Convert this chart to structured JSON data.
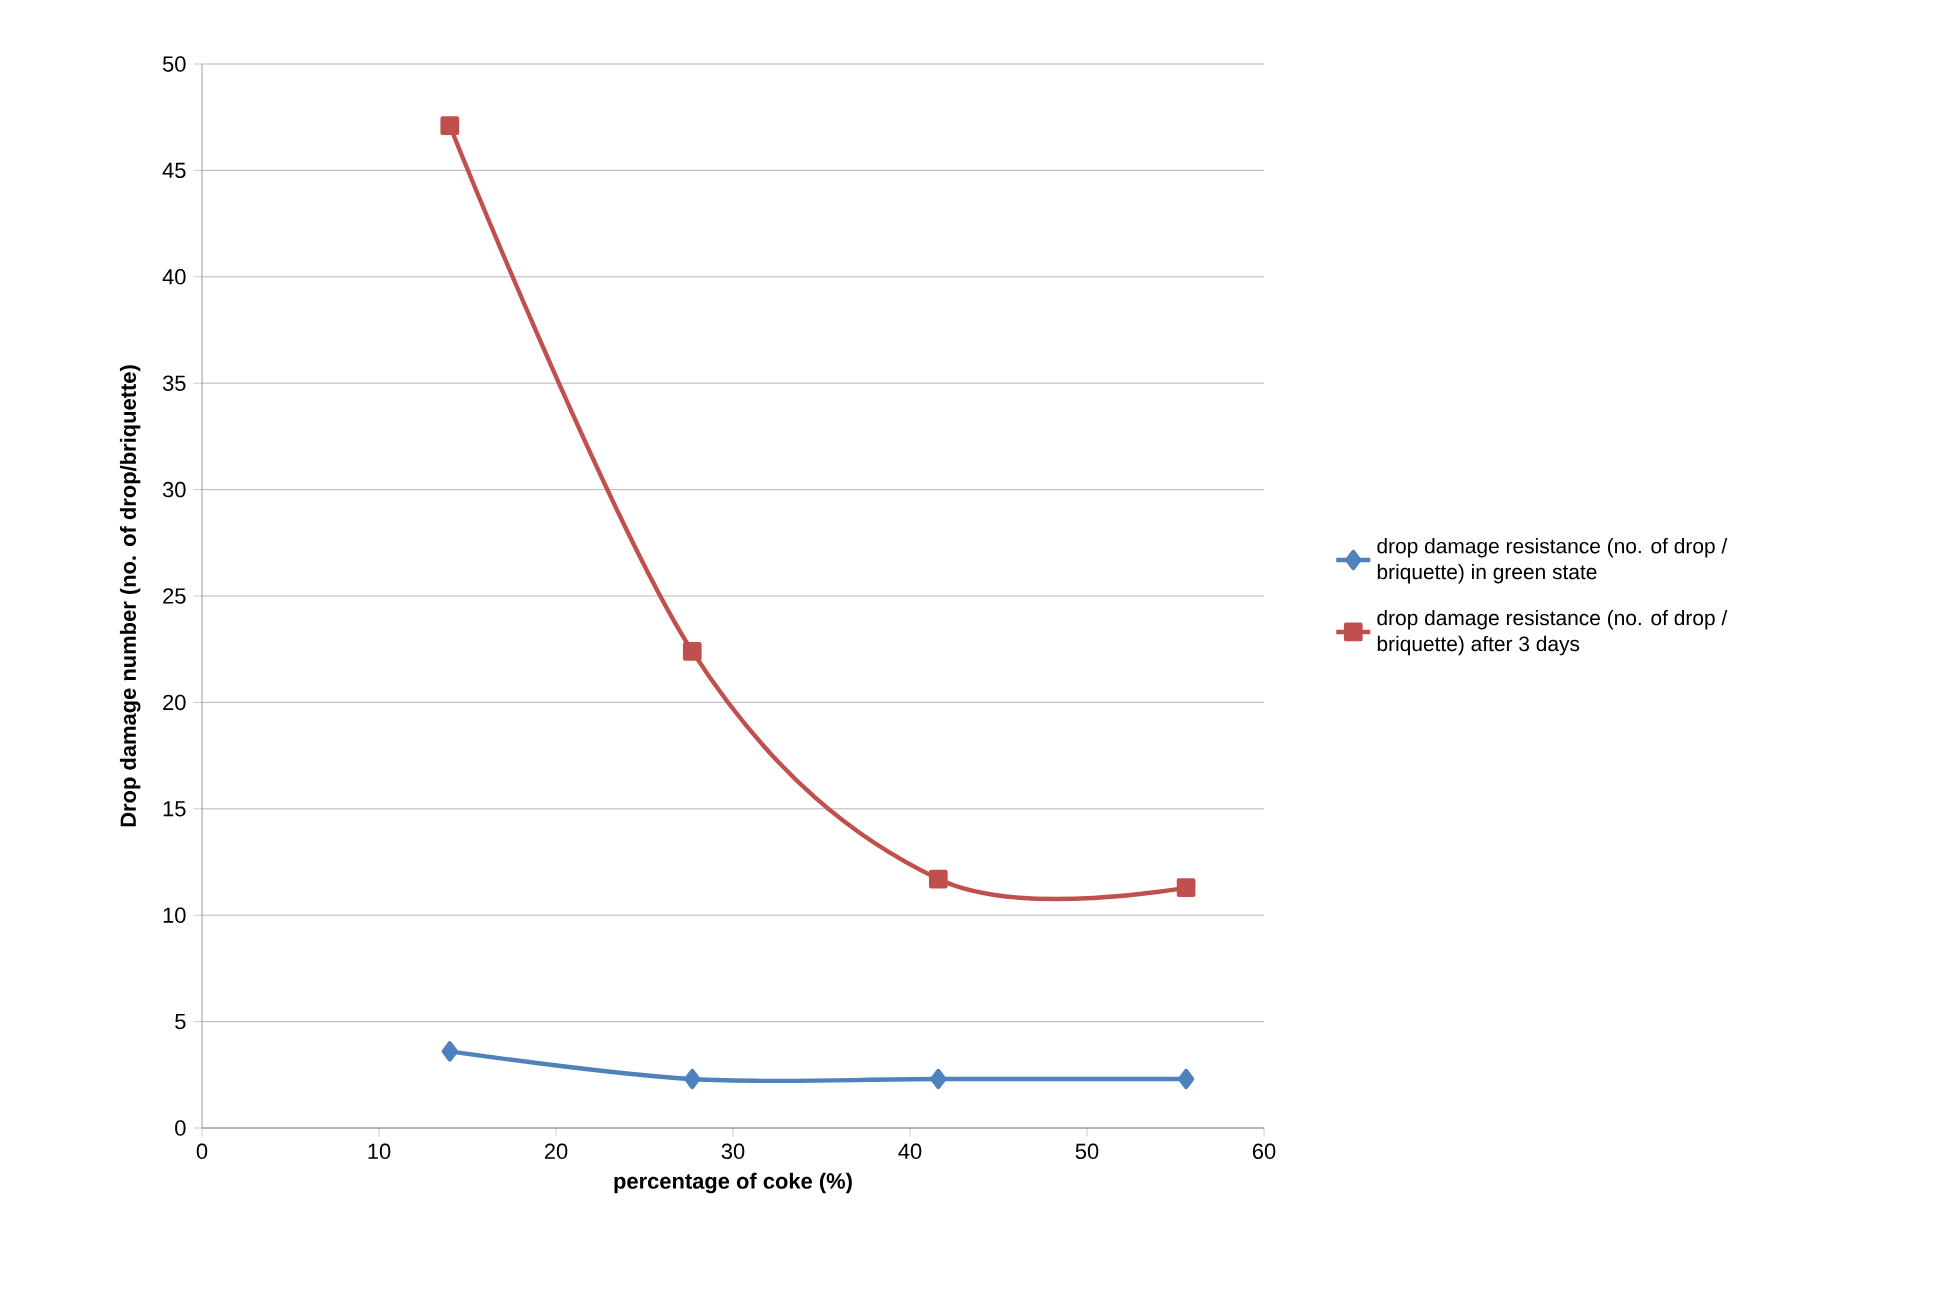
{
  "chart_data": {
    "type": "line",
    "xlabel": "percentage of coke (%)",
    "ylabel": "Drop damage number (no. of drop/briquette)",
    "xlim": [
      0,
      60
    ],
    "xticks": [
      0,
      10,
      20,
      30,
      40,
      50,
      60
    ],
    "ylim": [
      0,
      50
    ],
    "yticks": [
      0,
      5,
      10,
      15,
      20,
      25,
      30,
      35,
      40,
      45,
      50
    ],
    "x": [
      14,
      27.7,
      41.6,
      55.6
    ],
    "grid": "y",
    "legend": "right",
    "line_style": "solid",
    "series": [
      {
        "name": "drop damage resistance (no. of drop / briquette) in green state",
        "color": "#4f81bd",
        "marker": "diamond",
        "values": [
          3.6,
          2.3,
          2.3,
          2.3
        ]
      },
      {
        "name": "drop damage resistance (no. of drop / briquette) after 3 days",
        "color": "#c0504d",
        "marker": "square",
        "values": [
          47.1,
          22.4,
          11.7,
          11.3
        ]
      }
    ]
  }
}
